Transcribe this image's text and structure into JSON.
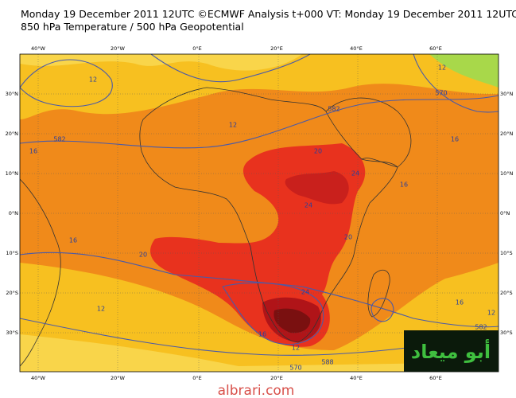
{
  "header": {
    "line1": "Monday 19 December 2011 12UTC ©ECMWF Analysis t+000 VT: Monday 19 December 2011 12UTC",
    "line2": "850 hPa Temperature / 500 hPa Geopotential"
  },
  "map": {
    "longitude_labels": [
      "40°W",
      "20°W",
      "0°E",
      "20°E",
      "40°E",
      "60°E"
    ],
    "latitude_labels": [
      "30°N",
      "20°N",
      "10°N",
      "0°N",
      "10°S",
      "20°S",
      "30°S"
    ],
    "contour_labels": [
      "12",
      "582",
      "16",
      "12",
      "582",
      "20",
      "24",
      "24",
      "20",
      "16",
      "20",
      "24",
      "12",
      "16",
      "12",
      "570",
      "588",
      "582",
      "16",
      "12",
      "16",
      "16",
      "12",
      "570"
    ]
  },
  "watermark": {
    "logo": "أبو ميعاد",
    "site": "albrari.com"
  }
}
